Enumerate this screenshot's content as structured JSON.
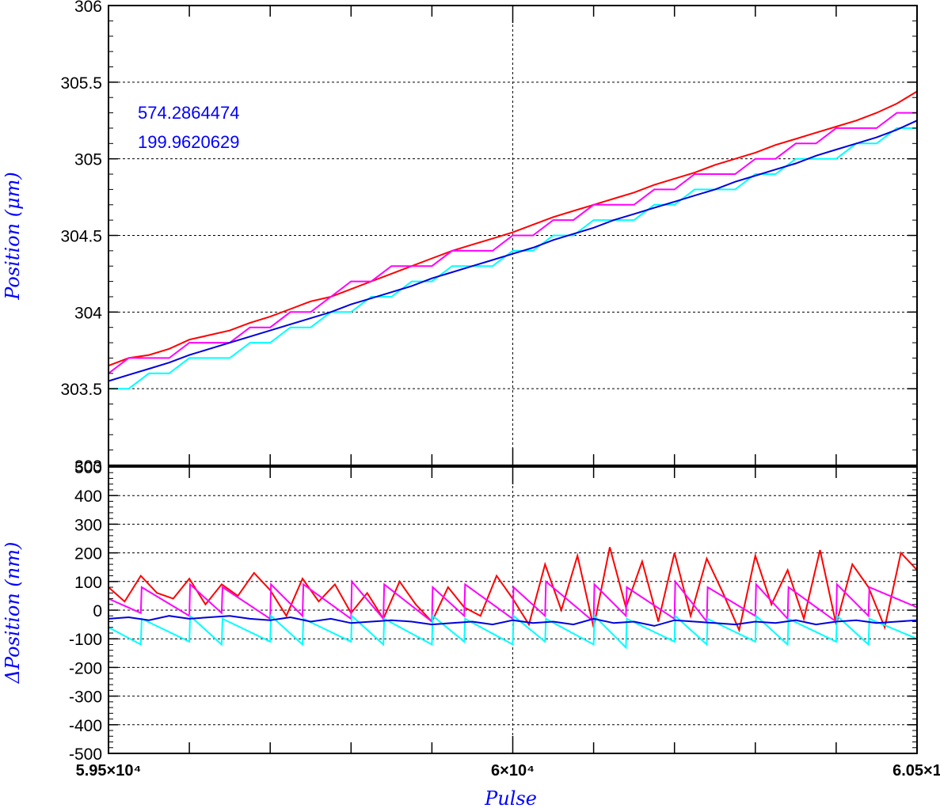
{
  "chart_data": [
    {
      "type": "line",
      "panel": "top",
      "ylabel": "Position (μm)",
      "xlim": [
        59500,
        60500
      ],
      "ylim": [
        303,
        306
      ],
      "yticks": [
        {
          "v": 303,
          "label": "303"
        },
        {
          "v": 303.5,
          "label": "303.5"
        },
        {
          "v": 304,
          "label": "304"
        },
        {
          "v": 304.5,
          "label": "304.5"
        },
        {
          "v": 305,
          "label": "305"
        },
        {
          "v": 305.5,
          "label": "305.5"
        },
        {
          "v": 306,
          "label": "306"
        }
      ],
      "grid": true,
      "annotations": [
        "574.2864474",
        "199.9620629"
      ],
      "series": [
        {
          "color": "#ff0000",
          "x": [
            59500,
            59525,
            59550,
            59575,
            59600,
            59625,
            59650,
            59675,
            59700,
            59725,
            59750,
            59775,
            59800,
            59825,
            59850,
            59875,
            59900,
            59925,
            59950,
            59975,
            60000,
            60025,
            60050,
            60075,
            60100,
            60125,
            60150,
            60175,
            60200,
            60225,
            60250,
            60275,
            60300,
            60325,
            60350,
            60375,
            60400,
            60425,
            60450,
            60475,
            60500
          ],
          "y": [
            303.65,
            303.7,
            303.72,
            303.76,
            303.82,
            303.85,
            303.88,
            303.93,
            303.97,
            304.02,
            304.07,
            304.1,
            304.15,
            304.2,
            304.25,
            304.3,
            304.35,
            304.4,
            304.44,
            304.48,
            304.52,
            304.57,
            304.62,
            304.66,
            304.7,
            304.74,
            304.78,
            304.83,
            304.87,
            304.91,
            304.96,
            305.0,
            305.04,
            305.09,
            305.13,
            305.17,
            305.21,
            305.25,
            305.3,
            305.36,
            305.44
          ]
        },
        {
          "color": "#ff00ff",
          "x": [
            59500,
            59525,
            59550,
            59575,
            59600,
            59625,
            59650,
            59675,
            59700,
            59725,
            59750,
            59775,
            59800,
            59825,
            59850,
            59875,
            59900,
            59925,
            59950,
            59975,
            60000,
            60025,
            60050,
            60075,
            60100,
            60125,
            60150,
            60175,
            60200,
            60225,
            60250,
            60275,
            60300,
            60325,
            60350,
            60375,
            60400,
            60425,
            60450,
            60475,
            60500
          ],
          "y": [
            303.6,
            303.7,
            303.7,
            303.7,
            303.8,
            303.8,
            303.8,
            303.9,
            303.9,
            304.0,
            304.0,
            304.1,
            304.2,
            304.2,
            304.3,
            304.3,
            304.3,
            304.4,
            304.4,
            304.4,
            304.5,
            304.5,
            304.6,
            304.6,
            304.7,
            304.7,
            304.7,
            304.8,
            304.8,
            304.9,
            304.9,
            304.9,
            305.0,
            305.0,
            305.1,
            305.1,
            305.2,
            305.2,
            305.2,
            305.3,
            305.3
          ]
        },
        {
          "color": "#00ffff",
          "x": [
            59500,
            59525,
            59550,
            59575,
            59600,
            59625,
            59650,
            59675,
            59700,
            59725,
            59750,
            59775,
            59800,
            59825,
            59850,
            59875,
            59900,
            59925,
            59950,
            59975,
            60000,
            60025,
            60050,
            60075,
            60100,
            60125,
            60150,
            60175,
            60200,
            60225,
            60250,
            60275,
            60300,
            60325,
            60350,
            60375,
            60400,
            60425,
            60450,
            60475,
            60500
          ],
          "y": [
            303.5,
            303.5,
            303.6,
            303.6,
            303.7,
            303.7,
            303.7,
            303.8,
            303.8,
            303.9,
            303.9,
            304.0,
            304.0,
            304.1,
            304.1,
            304.2,
            304.2,
            304.3,
            304.3,
            304.3,
            304.4,
            304.4,
            304.5,
            304.5,
            304.6,
            304.6,
            304.6,
            304.7,
            304.7,
            304.8,
            304.8,
            304.8,
            304.9,
            304.9,
            305.0,
            305.0,
            305.0,
            305.1,
            305.1,
            305.2,
            305.2
          ]
        },
        {
          "color": "#0000dd",
          "x": [
            59500,
            59525,
            59550,
            59575,
            59600,
            59625,
            59650,
            59675,
            59700,
            59725,
            59750,
            59775,
            59800,
            59825,
            59850,
            59875,
            59900,
            59925,
            59950,
            59975,
            60000,
            60025,
            60050,
            60075,
            60100,
            60125,
            60150,
            60175,
            60200,
            60225,
            60250,
            60275,
            60300,
            60325,
            60350,
            60375,
            60400,
            60425,
            60450,
            60475,
            60500
          ],
          "y": [
            303.55,
            303.59,
            303.63,
            303.67,
            303.72,
            303.76,
            303.8,
            303.84,
            303.88,
            303.92,
            303.96,
            304.0,
            304.05,
            304.09,
            304.13,
            304.17,
            304.22,
            304.26,
            304.3,
            304.34,
            304.38,
            304.42,
            304.47,
            304.51,
            304.55,
            304.6,
            304.64,
            304.68,
            304.72,
            304.76,
            304.8,
            304.85,
            304.89,
            304.93,
            304.97,
            305.02,
            305.06,
            305.1,
            305.14,
            305.19,
            305.25
          ]
        }
      ]
    },
    {
      "type": "line",
      "panel": "bottom",
      "xlabel": "Pulse",
      "ylabel": "ΔPosition (nm)",
      "xlim": [
        59500,
        60500
      ],
      "ylim": [
        -500,
        500
      ],
      "xticks": [
        {
          "v": 59500,
          "label": "5.95×10⁴"
        },
        {
          "v": 60000,
          "label": "6×10⁴"
        },
        {
          "v": 60500,
          "label": "6.05×1"
        }
      ],
      "yticks": [
        {
          "v": -500,
          "label": "-500"
        },
        {
          "v": -400,
          "label": "-400"
        },
        {
          "v": -300,
          "label": "-300"
        },
        {
          "v": -200,
          "label": "-200"
        },
        {
          "v": -100,
          "label": "-100"
        },
        {
          "v": 0,
          "label": "0"
        },
        {
          "v": 100,
          "label": "100"
        },
        {
          "v": 200,
          "label": "200"
        },
        {
          "v": 300,
          "label": "300"
        },
        {
          "v": 400,
          "label": "400"
        },
        {
          "v": 500,
          "label": "500"
        }
      ],
      "grid": true,
      "series": [
        {
          "color": "#ff0000",
          "x": [
            59500,
            59520,
            59540,
            59560,
            59580,
            59600,
            59620,
            59640,
            59660,
            59680,
            59700,
            59720,
            59740,
            59760,
            59780,
            59800,
            59820,
            59840,
            59860,
            59880,
            59900,
            59920,
            59940,
            59960,
            59980,
            60000,
            60020,
            60040,
            60060,
            60080,
            60100,
            60120,
            60140,
            60160,
            60180,
            60200,
            60220,
            60240,
            60260,
            60280,
            60300,
            60320,
            60340,
            60360,
            60380,
            60400,
            60420,
            60440,
            60460,
            60480,
            60500
          ],
          "y": [
            80,
            30,
            120,
            60,
            40,
            110,
            20,
            90,
            50,
            130,
            70,
            -20,
            110,
            30,
            90,
            -10,
            60,
            -30,
            100,
            20,
            -40,
            80,
            10,
            -20,
            120,
            40,
            -50,
            160,
            0,
            190,
            -60,
            220,
            10,
            170,
            -40,
            200,
            -20,
            180,
            60,
            -70,
            190,
            20,
            140,
            -30,
            210,
            -50,
            160,
            80,
            -60,
            200,
            140
          ]
        },
        {
          "color": "#ff00ff",
          "x": [
            59500,
            59540,
            59541,
            59600,
            59601,
            59640,
            59641,
            59700,
            59701,
            59740,
            59741,
            59800,
            59801,
            59840,
            59841,
            59900,
            59901,
            59940,
            59941,
            60000,
            60001,
            60040,
            60041,
            60100,
            60101,
            60140,
            60141,
            60200,
            60201,
            60240,
            60241,
            60300,
            60301,
            60340,
            60341,
            60400,
            60401,
            60440,
            60441,
            60500
          ],
          "y": [
            40,
            -10,
            80,
            -20,
            90,
            -10,
            80,
            -30,
            90,
            -20,
            90,
            -30,
            100,
            -30,
            90,
            -40,
            80,
            -20,
            90,
            -30,
            80,
            -20,
            100,
            -40,
            90,
            -20,
            80,
            -30,
            100,
            -40,
            80,
            -20,
            90,
            -30,
            80,
            -40,
            90,
            -20,
            80,
            10
          ]
        },
        {
          "color": "#00ffff",
          "x": [
            59500,
            59540,
            59541,
            59600,
            59601,
            59640,
            59641,
            59700,
            59701,
            59740,
            59741,
            59800,
            59801,
            59840,
            59841,
            59900,
            59901,
            59940,
            59941,
            60000,
            60001,
            60040,
            60041,
            60100,
            60101,
            60140,
            60141,
            60200,
            60201,
            60240,
            60241,
            60300,
            60301,
            60340,
            60341,
            60400,
            60401,
            60440,
            60441,
            60500
          ],
          "y": [
            -60,
            -120,
            -30,
            -110,
            -20,
            -120,
            -30,
            -110,
            -20,
            -120,
            -30,
            -110,
            -20,
            -120,
            -30,
            -120,
            -20,
            -110,
            -30,
            -120,
            -20,
            -110,
            -30,
            -120,
            -20,
            -130,
            -30,
            -110,
            -20,
            -120,
            -30,
            -110,
            -20,
            -120,
            -30,
            -110,
            -20,
            -120,
            -30,
            -100
          ]
        },
        {
          "color": "#0000dd",
          "x": [
            59500,
            59525,
            59550,
            59575,
            59600,
            59625,
            59650,
            59675,
            59700,
            59725,
            59750,
            59775,
            59800,
            59825,
            59850,
            59875,
            59900,
            59925,
            59950,
            59975,
            60000,
            60025,
            60050,
            60075,
            60100,
            60125,
            60150,
            60175,
            60200,
            60225,
            60250,
            60275,
            60300,
            60325,
            60350,
            60375,
            60400,
            60425,
            60450,
            60475,
            60500
          ],
          "y": [
            -30,
            -25,
            -35,
            -20,
            -30,
            -25,
            -20,
            -30,
            -35,
            -25,
            -40,
            -30,
            -45,
            -40,
            -35,
            -40,
            -50,
            -45,
            -40,
            -50,
            -35,
            -45,
            -40,
            -50,
            -30,
            -45,
            -40,
            -55,
            -35,
            -40,
            -45,
            -50,
            -40,
            -45,
            -35,
            -50,
            -40,
            -35,
            -45,
            -40,
            -35
          ]
        }
      ]
    }
  ]
}
